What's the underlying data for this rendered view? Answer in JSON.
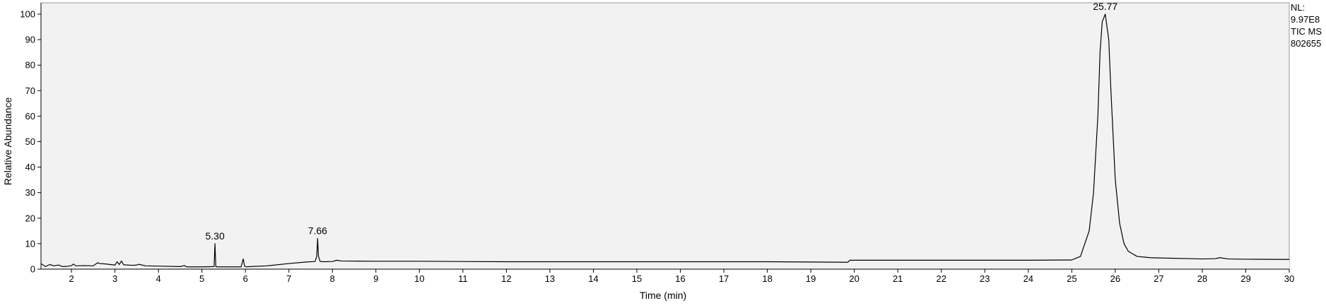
{
  "chart_data": {
    "type": "line",
    "title": "",
    "xlabel": "Time (min)",
    "ylabel": "Relative Abundance",
    "xlim": [
      1.3,
      30
    ],
    "ylim": [
      0,
      100
    ],
    "x_ticks": [
      2,
      3,
      4,
      5,
      6,
      7,
      8,
      9,
      10,
      11,
      12,
      13,
      14,
      15,
      16,
      17,
      18,
      19,
      20,
      21,
      22,
      23,
      24,
      25,
      26,
      27,
      28,
      29,
      30
    ],
    "y_ticks": [
      0,
      10,
      20,
      30,
      40,
      50,
      60,
      70,
      80,
      90,
      100
    ],
    "grid": false,
    "background": "#f2f2f2",
    "line_color": "#000000",
    "fill_color": "#f2f2f2",
    "peak_labels": [
      {
        "x": 5.3,
        "y": 10,
        "label": "5.30"
      },
      {
        "x": 7.66,
        "y": 12,
        "label": "7.66"
      },
      {
        "x": 25.77,
        "y": 100,
        "label": "25.77"
      }
    ],
    "series": [
      {
        "x": [
          1.3,
          1.4,
          1.5,
          1.6,
          1.7,
          1.8,
          1.9,
          2.0,
          2.05,
          2.1,
          2.3,
          2.5,
          2.6,
          2.65,
          2.8,
          3.0,
          3.05,
          3.1,
          3.15,
          3.2,
          3.4,
          3.5,
          3.55,
          3.7,
          4.0,
          4.5,
          4.6,
          4.65,
          5.0,
          5.28,
          5.3,
          5.32,
          5.35,
          5.6,
          5.9,
          5.95,
          5.98,
          6.02,
          6.1,
          6.5,
          7.0,
          7.4,
          7.6,
          7.64,
          7.66,
          7.68,
          7.72,
          7.8,
          8.0,
          8.1,
          8.2,
          9.0,
          10.0,
          11.0,
          12.0,
          15.0,
          18.0,
          19.85,
          19.9,
          20.0,
          22.0,
          24.0,
          25.0,
          25.2,
          25.4,
          25.5,
          25.6,
          25.65,
          25.7,
          25.77,
          25.85,
          25.9,
          26.0,
          26.1,
          26.2,
          26.3,
          26.5,
          26.8,
          27.0,
          28.0,
          28.3,
          28.4,
          28.6,
          29.0,
          30.0
        ],
        "y": [
          2.2,
          1.0,
          1.8,
          1.3,
          1.6,
          1.0,
          1.1,
          1.4,
          2.0,
          1.3,
          1.4,
          1.3,
          2.5,
          2.2,
          2.0,
          1.6,
          2.9,
          1.8,
          3.2,
          1.7,
          1.5,
          1.6,
          1.9,
          1.3,
          1.2,
          1.0,
          1.4,
          0.9,
          0.9,
          1.0,
          10.0,
          1.0,
          0.9,
          0.9,
          0.9,
          4.0,
          1.2,
          0.9,
          1.0,
          1.3,
          2.2,
          2.8,
          3.0,
          5.0,
          12.0,
          5.0,
          3.0,
          2.9,
          3.0,
          3.5,
          3.2,
          3.1,
          3.1,
          3.0,
          2.9,
          2.9,
          2.9,
          2.7,
          3.5,
          3.5,
          3.5,
          3.5,
          3.6,
          5.0,
          15.0,
          30.0,
          60.0,
          85.0,
          97.0,
          100.0,
          90.0,
          70.0,
          35.0,
          18.0,
          10.0,
          7.0,
          5.0,
          4.5,
          4.4,
          4.0,
          4.1,
          4.5,
          4.0,
          3.9,
          3.8
        ]
      }
    ]
  },
  "nl_block": {
    "line1": "NL:",
    "line2": "9.97E8",
    "line3": "TIC  MS",
    "line4": "802655"
  }
}
